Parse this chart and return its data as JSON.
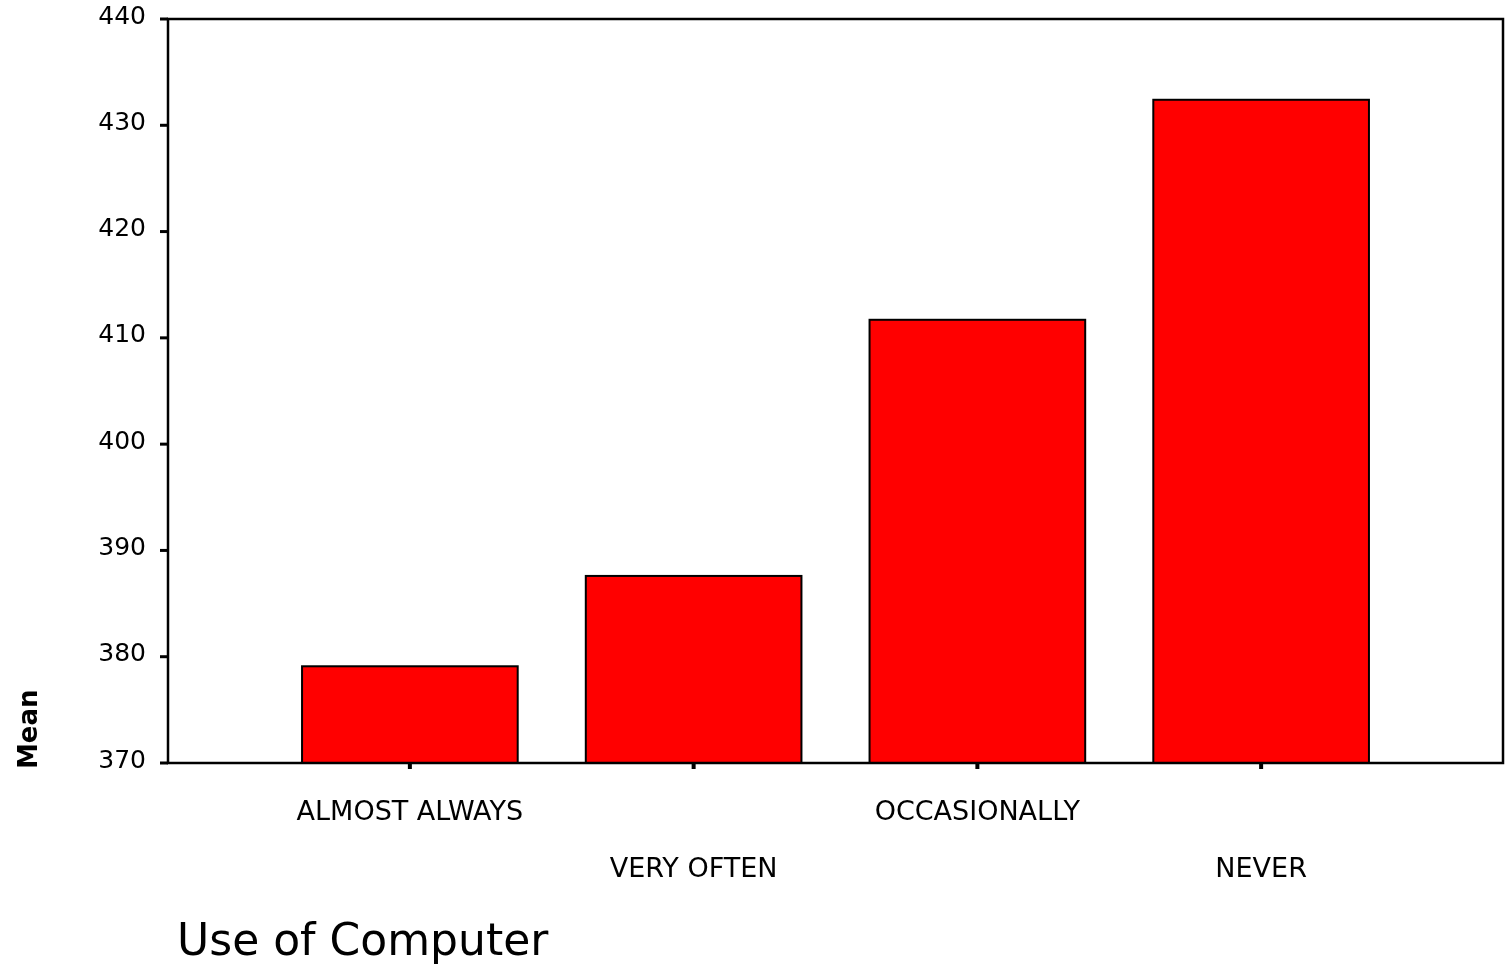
{
  "chart_data": {
    "type": "bar",
    "xlabel": "Use of Computer",
    "ylabel": "Mean",
    "categories": [
      "ALMOST ALWAYS",
      "VERY OFTEN",
      "OCCASIONALLY",
      "NEVER"
    ],
    "values": [
      379.1,
      387.6,
      411.7,
      432.4
    ],
    "color": "#ff0000",
    "ylim": [
      370,
      440
    ],
    "yticks": [
      370,
      380,
      390,
      400,
      410,
      420,
      430,
      440
    ],
    "grid": false
  }
}
